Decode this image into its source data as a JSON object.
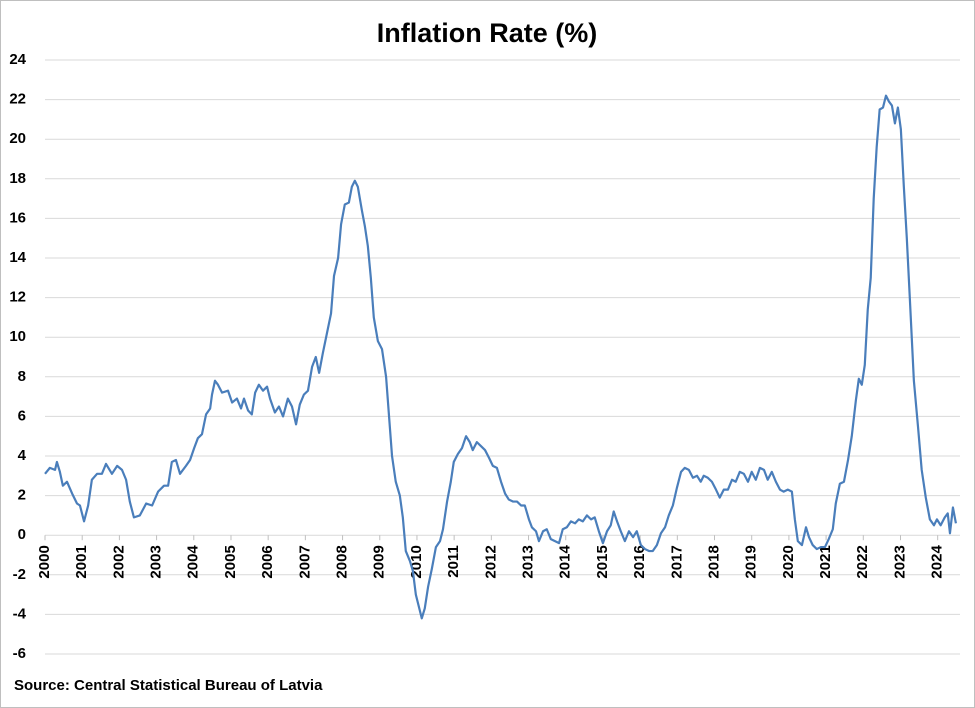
{
  "chart_data": {
    "type": "line",
    "title": "Inflation Rate (%)",
    "source": "Source: Central Statistical Bureau of Latvia",
    "color": "#4a7ebb",
    "grid": true,
    "xlim": [
      2000,
      2024.6
    ],
    "ylim": [
      -6,
      24
    ],
    "xticks": [
      2000,
      2001,
      2002,
      2003,
      2004,
      2005,
      2006,
      2007,
      2008,
      2009,
      2010,
      2011,
      2012,
      2013,
      2014,
      2015,
      2016,
      2017,
      2018,
      2019,
      2020,
      2021,
      2022,
      2023,
      2024
    ],
    "yticks": [
      -6,
      -4,
      -2,
      0,
      2,
      4,
      6,
      8,
      10,
      12,
      14,
      16,
      18,
      20,
      22,
      24
    ],
    "x": [
      2000,
      2000.13,
      2000.27,
      2000.32,
      2000.4,
      2000.48,
      2000.59,
      2000.73,
      2000.86,
      2000.94,
      2001.05,
      2001.16,
      2001.26,
      2001.4,
      2001.53,
      2001.64,
      2001.8,
      2001.94,
      2002.07,
      2002.18,
      2002.28,
      2002.39,
      2002.55,
      2002.72,
      2002.88,
      2003.04,
      2003.2,
      2003.31,
      2003.41,
      2003.52,
      2003.63,
      2003.79,
      2003.9,
      2004.01,
      2004.11,
      2004.22,
      2004.33,
      2004.44,
      2004.49,
      2004.57,
      2004.65,
      2004.76,
      2004.92,
      2005.03,
      2005.16,
      2005.27,
      2005.35,
      2005.46,
      2005.56,
      2005.65,
      2005.75,
      2005.86,
      2005.97,
      2006.05,
      2006.18,
      2006.29,
      2006.4,
      2006.53,
      2006.64,
      2006.75,
      2006.85,
      2006.96,
      2007.07,
      2007.18,
      2007.28,
      2007.37,
      2007.47,
      2007.58,
      2007.69,
      2007.77,
      2007.88,
      2007.96,
      2008.06,
      2008.17,
      2008.25,
      2008.33,
      2008.41,
      2008.52,
      2008.6,
      2008.68,
      2008.76,
      2008.84,
      2008.95,
      2009.06,
      2009.17,
      2009.25,
      2009.33,
      2009.43,
      2009.54,
      2009.62,
      2009.7,
      2009.81,
      2009.89,
      2009.97,
      2010.05,
      2010.13,
      2010.21,
      2010.3,
      2010.4,
      2010.51,
      2010.62,
      2010.7,
      2010.81,
      2010.91,
      2010.99,
      2011.1,
      2011.21,
      2011.32,
      2011.42,
      2011.5,
      2011.61,
      2011.72,
      2011.83,
      2011.94,
      2012.04,
      2012.15,
      2012.26,
      2012.37,
      2012.47,
      2012.58,
      2012.69,
      2012.8,
      2012.9,
      2013.01,
      2013.09,
      2013.2,
      2013.28,
      2013.39,
      2013.49,
      2013.6,
      2013.71,
      2013.82,
      2013.92,
      2014.03,
      2014.14,
      2014.25,
      2014.35,
      2014.46,
      2014.57,
      2014.68,
      2014.78,
      2014.89,
      2015,
      2015.11,
      2015.21,
      2015.29,
      2015.38,
      2015.48,
      2015.59,
      2015.7,
      2015.81,
      2015.91,
      2016.02,
      2016.13,
      2016.24,
      2016.34,
      2016.45,
      2016.56,
      2016.67,
      2016.77,
      2016.88,
      2016.99,
      2017.1,
      2017.2,
      2017.31,
      2017.42,
      2017.53,
      2017.63,
      2017.71,
      2017.82,
      2017.93,
      2018.04,
      2018.14,
      2018.25,
      2018.36,
      2018.47,
      2018.57,
      2018.68,
      2018.79,
      2018.9,
      2019,
      2019.11,
      2019.22,
      2019.33,
      2019.43,
      2019.54,
      2019.65,
      2019.76,
      2019.86,
      2019.97,
      2020.08,
      2020.16,
      2020.24,
      2020.35,
      2020.46,
      2020.54,
      2020.64,
      2020.75,
      2020.86,
      2020.97,
      2021.07,
      2021.18,
      2021.26,
      2021.37,
      2021.48,
      2021.59,
      2021.69,
      2021.8,
      2021.88,
      2021.96,
      2022.04,
      2022.12,
      2022.2,
      2022.28,
      2022.36,
      2022.44,
      2022.53,
      2022.61,
      2022.69,
      2022.77,
      2022.85,
      2022.93,
      2023.01,
      2023.09,
      2023.17,
      2023.25,
      2023.36,
      2023.47,
      2023.57,
      2023.68,
      2023.79,
      2023.9,
      2023.98,
      2024.08,
      2024.19,
      2024.27,
      2024.33,
      2024.41,
      2024.49
    ],
    "values": [
      3.1,
      3.4,
      3.3,
      3.7,
      3.2,
      2.5,
      2.7,
      2.1,
      1.6,
      1.5,
      0.7,
      1.5,
      2.8,
      3.1,
      3.1,
      3.6,
      3.1,
      3.5,
      3.3,
      2.8,
      1.7,
      0.9,
      1.0,
      1.6,
      1.5,
      2.2,
      2.5,
      2.5,
      3.7,
      3.8,
      3.1,
      3.5,
      3.8,
      4.4,
      4.9,
      5.1,
      6.1,
      6.4,
      7.1,
      7.8,
      7.6,
      7.2,
      7.3,
      6.7,
      6.9,
      6.4,
      6.9,
      6.3,
      6.1,
      7.2,
      7.6,
      7.3,
      7.5,
      6.9,
      6.2,
      6.5,
      6.0,
      6.9,
      6.5,
      5.6,
      6.6,
      7.1,
      7.3,
      8.5,
      9.0,
      8.2,
      9.2,
      10.2,
      11.2,
      13.1,
      14.0,
      15.7,
      16.7,
      16.8,
      17.6,
      17.9,
      17.6,
      16.4,
      15.6,
      14.6,
      13.0,
      11.0,
      9.8,
      9.4,
      8.0,
      6.0,
      4.0,
      2.7,
      2.0,
      0.9,
      -0.8,
      -1.3,
      -1.8,
      -3.0,
      -3.6,
      -4.2,
      -3.7,
      -2.6,
      -1.7,
      -0.6,
      -0.3,
      0.3,
      1.7,
      2.7,
      3.7,
      4.1,
      4.4,
      5.0,
      4.7,
      4.3,
      4.7,
      4.5,
      4.3,
      3.9,
      3.5,
      3.4,
      2.7,
      2.1,
      1.8,
      1.7,
      1.7,
      1.5,
      1.5,
      0.8,
      0.4,
      0.2,
      -0.3,
      0.2,
      0.3,
      -0.2,
      -0.3,
      -0.4,
      0.3,
      0.4,
      0.7,
      0.6,
      0.8,
      0.7,
      1.0,
      0.8,
      0.9,
      0.2,
      -0.4,
      0.2,
      0.5,
      1.2,
      0.7,
      0.2,
      -0.3,
      0.2,
      -0.1,
      0.2,
      -0.5,
      -0.7,
      -0.8,
      -0.8,
      -0.5,
      0.1,
      0.4,
      1.0,
      1.5,
      2.4,
      3.2,
      3.4,
      3.3,
      2.9,
      3.0,
      2.7,
      3.0,
      2.9,
      2.7,
      2.3,
      1.9,
      2.3,
      2.3,
      2.8,
      2.7,
      3.2,
      3.1,
      2.7,
      3.2,
      2.8,
      3.4,
      3.3,
      2.8,
      3.2,
      2.7,
      2.3,
      2.2,
      2.3,
      2.2,
      0.8,
      -0.3,
      -0.5,
      0.4,
      -0.1,
      -0.5,
      -0.7,
      -0.6,
      -0.6,
      -0.2,
      0.3,
      1.6,
      2.6,
      2.7,
      3.8,
      5.0,
      6.8,
      7.9,
      7.6,
      8.6,
      11.4,
      13.0,
      17.0,
      19.6,
      21.5,
      21.6,
      22.2,
      21.9,
      21.7,
      20.8,
      21.6,
      20.5,
      17.6,
      15.0,
      12.0,
      7.8,
      5.5,
      3.3,
      1.9,
      0.8,
      0.5,
      0.8,
      0.5,
      0.9,
      1.1,
      0.1,
      1.4,
      0.6
    ]
  }
}
